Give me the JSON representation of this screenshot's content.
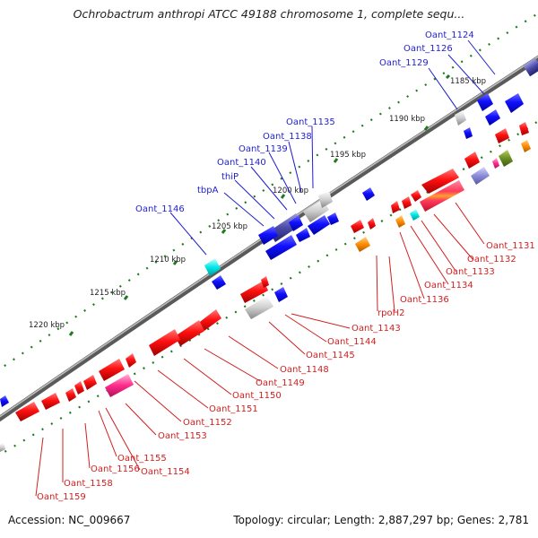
{
  "title": "Ochrobactrum anthropi ATCC 49188 chromosome 1, complete sequ...",
  "footer": {
    "accession": "Accession: NC_009667",
    "topology": "Topology: circular; Length: 2,887,297 bp; Genes: 2,781"
  },
  "colors": {
    "backbone": "#7a7a7a",
    "tick": "#1e7a1e",
    "forward_label": "#1f1fd0",
    "reverse_label": "#d01f1f"
  },
  "ticks": [
    {
      "label": "1185 kbp"
    },
    {
      "label": "1190 kbp"
    },
    {
      "label": "1195 kbp"
    },
    {
      "label": "1200 kbp"
    },
    {
      "label": "1205 kbp"
    },
    {
      "label": "1210 kbp"
    },
    {
      "label": "1215 kbp"
    },
    {
      "label": "1220 kbp"
    }
  ],
  "forward_labels": [
    {
      "text": "Oant_1124"
    },
    {
      "text": "Oant_1126"
    },
    {
      "text": "Oant_1129"
    },
    {
      "text": "Oant_1135"
    },
    {
      "text": "Oant_1138"
    },
    {
      "text": "Oant_1139"
    },
    {
      "text": "Oant_1140"
    },
    {
      "text": "thiP"
    },
    {
      "text": "tbpA"
    },
    {
      "text": "Oant_1146"
    }
  ],
  "reverse_labels": [
    {
      "text": "Oant_1131"
    },
    {
      "text": "Oant_1132"
    },
    {
      "text": "Oant_1133"
    },
    {
      "text": "Oant_1134"
    },
    {
      "text": "Oant_1136"
    },
    {
      "text": "rpoH2"
    },
    {
      "text": "Oant_1143"
    },
    {
      "text": "Oant_1144"
    },
    {
      "text": "Oant_1145"
    },
    {
      "text": "Oant_1148"
    },
    {
      "text": "Oant_1149"
    },
    {
      "text": "Oant_1150"
    },
    {
      "text": "Oant_1151"
    },
    {
      "text": "Oant_1152"
    },
    {
      "text": "Oant_1153"
    },
    {
      "text": "Oant_1155"
    },
    {
      "text": "Oant_1154"
    },
    {
      "text": "Oant_1156"
    },
    {
      "text": "Oant_1158"
    },
    {
      "text": "Oant_1159"
    }
  ]
}
